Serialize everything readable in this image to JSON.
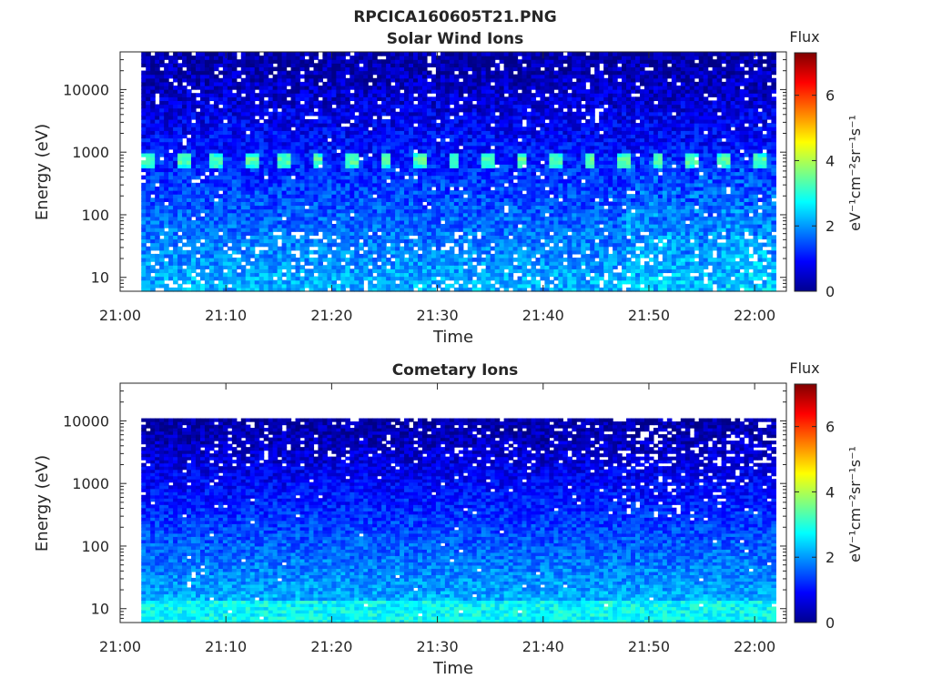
{
  "figure_title": "RPCICA160605T21.PNG",
  "chart_data": [
    {
      "type": "heatmap",
      "title": "Solar Wind Ions",
      "xlabel": "Time",
      "ylabel": "Energy (eV)",
      "x_ticks": [
        "21:00",
        "21:10",
        "21:20",
        "21:30",
        "21:40",
        "21:50",
        "22:00"
      ],
      "x_range": [
        "21:00",
        "22:03"
      ],
      "data_time_range": [
        "21:02",
        "22:02"
      ],
      "y_scale": "log",
      "y_ticks": [
        10,
        100,
        1000,
        10000
      ],
      "y_range_eV": [
        6,
        40000
      ],
      "data_energy_range_eV": [
        6,
        40000
      ],
      "colorbar": {
        "title": "Flux",
        "label": "eV⁻¹cm⁻²sr⁻¹s⁻¹",
        "range": [
          0,
          7.3
        ],
        "ticks": [
          0,
          2,
          4,
          6
        ],
        "colormap": "jet"
      },
      "features": [
        {
          "description": "periodic flux peaks near 700 eV",
          "energy_eV": 700,
          "flux": 3.5,
          "period_minutes": 3.2
        }
      ]
    },
    {
      "type": "heatmap",
      "title": "Cometary Ions",
      "xlabel": "Time",
      "ylabel": "Energy (eV)",
      "x_ticks": [
        "21:00",
        "21:10",
        "21:20",
        "21:30",
        "21:40",
        "21:50",
        "22:00"
      ],
      "x_range": [
        "21:00",
        "22:03"
      ],
      "data_time_range": [
        "21:02",
        "22:02"
      ],
      "y_scale": "log",
      "y_ticks": [
        10,
        100,
        1000,
        10000
      ],
      "y_range_eV": [
        6,
        40000
      ],
      "data_energy_range_eV": [
        6,
        11000
      ],
      "colorbar": {
        "title": "Flux",
        "label": "eV⁻¹cm⁻²sr⁻¹s⁻¹",
        "range": [
          0,
          7.3
        ],
        "ticks": [
          0,
          2,
          4,
          6
        ],
        "colormap": "jet"
      },
      "features": [
        {
          "description": "enhanced flux at lowest energies",
          "energy_eV": 15,
          "flux": 2.8
        }
      ]
    }
  ]
}
